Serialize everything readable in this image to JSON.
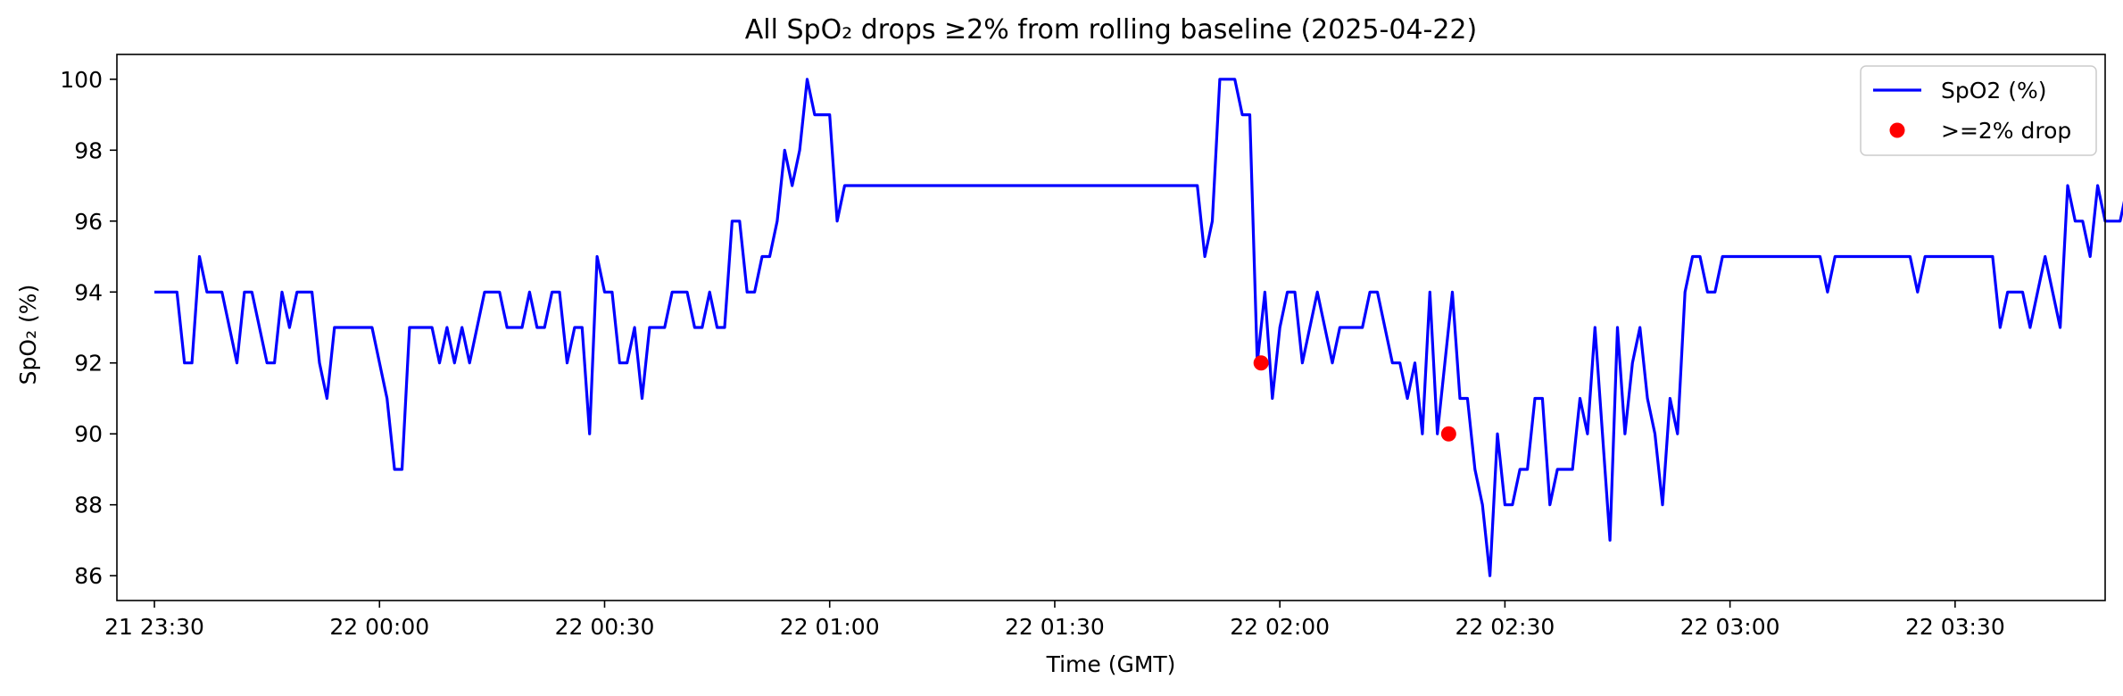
{
  "chart_data": {
    "type": "line",
    "title": "All SpO₂ drops ≥2% from rolling baseline (2025-04-22)",
    "xlabel": "Time (GMT)",
    "ylabel": "SpO₂ (%)",
    "xlim_minutes_after_2330": [
      -10,
      520
    ],
    "ylim": [
      85.3,
      100.7
    ],
    "grid": false,
    "legend_position": "top-right",
    "x_ticks": [
      {
        "label": "21 23:30",
        "minutes": 0
      },
      {
        "label": "22 00:00",
        "minutes": 60
      },
      {
        "label": "22 00:30",
        "minutes": 120
      },
      {
        "label": "22 01:00",
        "minutes": 180
      },
      {
        "label": "22 01:30",
        "minutes": 240
      },
      {
        "label": "22 02:00",
        "minutes": 300
      },
      {
        "label": "22 02:30",
        "minutes": 360
      },
      {
        "label": "22 03:00",
        "minutes": 420
      },
      {
        "label": "22 03:30",
        "minutes": 480
      },
      {
        "label": "22 04:00",
        "minutes": 540
      }
    ],
    "y_ticks": [
      "86",
      "88",
      "90",
      "92",
      "94",
      "96",
      "98",
      "100"
    ],
    "series": [
      {
        "name": "SpO2 (%)",
        "color": "#0000ff",
        "points": [
          [
            0,
            94
          ],
          [
            6,
            94
          ],
          [
            8,
            92
          ],
          [
            10,
            92
          ],
          [
            12,
            95
          ],
          [
            14,
            94
          ],
          [
            18,
            94
          ],
          [
            22,
            92
          ],
          [
            24,
            94
          ],
          [
            26,
            94
          ],
          [
            30,
            92
          ],
          [
            32,
            92
          ],
          [
            34,
            94
          ],
          [
            36,
            93
          ],
          [
            38,
            94
          ],
          [
            42,
            94
          ],
          [
            44,
            92
          ],
          [
            46,
            91
          ],
          [
            48,
            93
          ],
          [
            58,
            93
          ],
          [
            62,
            91
          ],
          [
            64,
            89
          ],
          [
            66,
            89
          ],
          [
            68,
            93
          ],
          [
            74,
            93
          ],
          [
            76,
            92
          ],
          [
            78,
            93
          ],
          [
            80,
            92
          ],
          [
            82,
            93
          ],
          [
            84,
            92
          ],
          [
            86,
            93
          ],
          [
            88,
            94
          ],
          [
            92,
            94
          ],
          [
            94,
            93
          ],
          [
            98,
            93
          ],
          [
            100,
            94
          ],
          [
            102,
            93
          ],
          [
            104,
            93
          ],
          [
            106,
            94
          ],
          [
            108,
            94
          ],
          [
            110,
            92
          ],
          [
            112,
            93
          ],
          [
            114,
            93
          ],
          [
            116,
            90
          ],
          [
            118,
            95
          ],
          [
            120,
            94
          ],
          [
            122,
            94
          ],
          [
            124,
            92
          ],
          [
            126,
            92
          ],
          [
            128,
            93
          ],
          [
            130,
            91
          ],
          [
            132,
            93
          ],
          [
            136,
            93
          ],
          [
            138,
            94
          ],
          [
            142,
            94
          ],
          [
            144,
            93
          ],
          [
            146,
            93
          ],
          [
            148,
            94
          ],
          [
            150,
            93
          ],
          [
            152,
            93
          ],
          [
            154,
            96
          ],
          [
            156,
            96
          ],
          [
            158,
            94
          ],
          [
            160,
            94
          ],
          [
            162,
            95
          ],
          [
            164,
            95
          ],
          [
            166,
            96
          ],
          [
            168,
            98
          ],
          [
            170,
            97
          ],
          [
            172,
            98
          ],
          [
            174,
            100
          ],
          [
            176,
            99
          ],
          [
            180,
            99
          ],
          [
            182,
            96
          ],
          [
            184,
            97
          ],
          [
            278,
            97
          ],
          [
            280,
            95
          ],
          [
            282,
            96
          ],
          [
            284,
            100
          ],
          [
            288,
            100
          ],
          [
            290,
            99
          ],
          [
            292,
            99
          ],
          [
            294,
            92
          ],
          [
            296,
            94
          ],
          [
            298,
            91
          ],
          [
            300,
            93
          ],
          [
            302,
            94
          ],
          [
            304,
            94
          ],
          [
            306,
            92
          ],
          [
            310,
            94
          ],
          [
            314,
            92
          ],
          [
            316,
            93
          ],
          [
            322,
            93
          ],
          [
            324,
            94
          ],
          [
            326,
            94
          ],
          [
            328,
            93
          ],
          [
            330,
            92
          ],
          [
            332,
            92
          ],
          [
            334,
            91
          ],
          [
            336,
            92
          ],
          [
            338,
            90
          ],
          [
            340,
            94
          ],
          [
            342,
            90
          ],
          [
            344,
            92
          ],
          [
            346,
            94
          ],
          [
            348,
            91
          ],
          [
            350,
            91
          ],
          [
            352,
            89
          ],
          [
            354,
            88
          ],
          [
            356,
            86
          ],
          [
            358,
            90
          ],
          [
            360,
            88
          ],
          [
            362,
            88
          ],
          [
            364,
            89
          ],
          [
            366,
            89
          ],
          [
            368,
            91
          ],
          [
            370,
            91
          ],
          [
            372,
            88
          ],
          [
            374,
            89
          ],
          [
            378,
            89
          ],
          [
            380,
            91
          ],
          [
            382,
            90
          ],
          [
            384,
            93
          ],
          [
            386,
            90
          ],
          [
            388,
            87
          ],
          [
            390,
            93
          ],
          [
            392,
            90
          ],
          [
            394,
            92
          ],
          [
            396,
            93
          ],
          [
            398,
            91
          ],
          [
            400,
            90
          ],
          [
            402,
            88
          ],
          [
            404,
            91
          ],
          [
            406,
            90
          ],
          [
            408,
            94
          ],
          [
            410,
            95
          ],
          [
            412,
            95
          ],
          [
            414,
            94
          ],
          [
            416,
            94
          ],
          [
            418,
            95
          ],
          [
            444,
            95
          ],
          [
            446,
            94
          ],
          [
            448,
            95
          ],
          [
            468,
            95
          ],
          [
            470,
            94
          ],
          [
            472,
            95
          ],
          [
            490,
            95
          ],
          [
            492,
            93
          ],
          [
            494,
            94
          ],
          [
            498,
            94
          ],
          [
            500,
            93
          ],
          [
            504,
            95
          ],
          [
            508,
            93
          ],
          [
            510,
            97
          ],
          [
            512,
            96
          ],
          [
            514,
            96
          ],
          [
            516,
            95
          ],
          [
            518,
            97
          ],
          [
            520,
            96
          ],
          [
            524,
            96
          ],
          [
            526,
            97
          ],
          [
            528,
            96
          ],
          [
            530,
            96
          ],
          [
            532,
            95
          ],
          [
            534,
            95
          ],
          [
            536,
            94
          ],
          [
            540,
            94
          ]
        ]
      },
      {
        "name": ">=2% drop",
        "type": "scatter",
        "color": "#ff0000",
        "points": [
          [
            295,
            92
          ],
          [
            345,
            90
          ]
        ]
      }
    ]
  }
}
